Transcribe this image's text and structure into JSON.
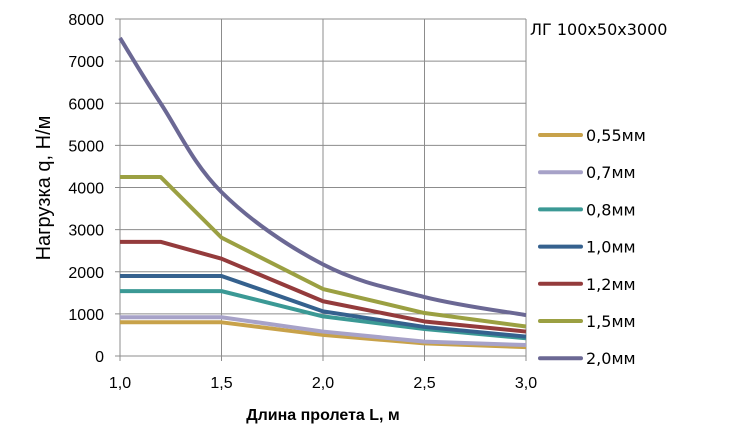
{
  "chart_data": {
    "type": "line",
    "title": "ЛГ 100х50х3000",
    "xlabel": "Длина пролета L, м",
    "ylabel": "Нагрузка q, Н/м",
    "xlim": [
      1.0,
      3.0
    ],
    "ylim": [
      0,
      8000
    ],
    "x_ticks": [
      "1,0",
      "1,5",
      "2,0",
      "2,5",
      "3,0"
    ],
    "y_ticks": [
      "0",
      "1000",
      "2000",
      "3000",
      "4000",
      "5000",
      "6000",
      "7000",
      "8000"
    ],
    "grid": true,
    "legend_position": "right",
    "x": [
      1.0,
      1.2,
      1.5,
      2.0,
      2.5,
      3.0
    ],
    "series": [
      {
        "name": "0,55мм",
        "color": "#c8a24a",
        "values": [
          800,
          800,
          800,
          500,
          300,
          210
        ]
      },
      {
        "name": "0,7мм",
        "color": "#a7a2c8",
        "values": [
          920,
          920,
          920,
          580,
          340,
          260
        ]
      },
      {
        "name": "0,8мм",
        "color": "#3b9995",
        "values": [
          1540,
          1540,
          1540,
          940,
          640,
          420
        ]
      },
      {
        "name": "1,0мм",
        "color": "#35618e",
        "values": [
          1900,
          1900,
          1900,
          1060,
          690,
          460
        ]
      },
      {
        "name": "1,2мм",
        "color": "#943b3c",
        "values": [
          2710,
          2710,
          2310,
          1300,
          820,
          580
        ]
      },
      {
        "name": "1,5мм",
        "color": "#9ba042",
        "values": [
          4250,
          4250,
          2810,
          1590,
          1020,
          700
        ]
      },
      {
        "name": "2,0мм",
        "color": "#6b6894",
        "values": [
          7550,
          6000,
          3890,
          2175,
          1400,
          970
        ],
        "smooth": true
      }
    ]
  }
}
